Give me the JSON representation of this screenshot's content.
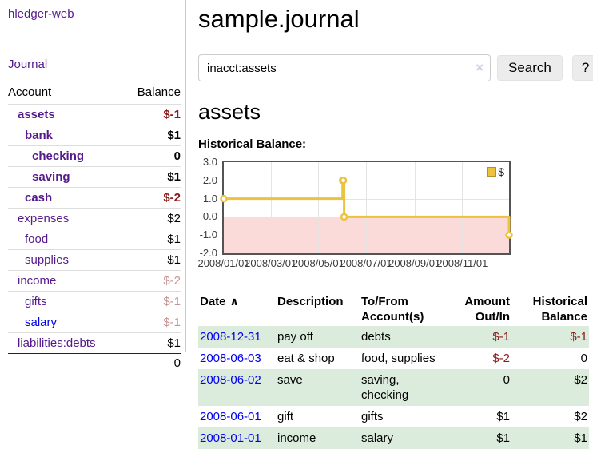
{
  "brand": {
    "label": "hledger-web"
  },
  "nav": {
    "journal": "Journal"
  },
  "sidebar": {
    "header": {
      "account": "Account",
      "balance": "Balance"
    },
    "accounts": [
      {
        "name": "assets",
        "balance": "$-1"
      },
      {
        "name": "bank",
        "balance": "$1"
      },
      {
        "name": "checking",
        "balance": "0"
      },
      {
        "name": "saving",
        "balance": "$1"
      },
      {
        "name": "cash",
        "balance": "$-2"
      },
      {
        "name": "expenses",
        "balance": "$2"
      },
      {
        "name": "food",
        "balance": "$1"
      },
      {
        "name": "supplies",
        "balance": "$1"
      },
      {
        "name": "income",
        "balance": "$-2"
      },
      {
        "name": "gifts",
        "balance": "$-1"
      },
      {
        "name": "salary",
        "balance": "$-1"
      },
      {
        "name": "liabilities:debts",
        "balance": "$1"
      }
    ],
    "total": "0"
  },
  "main": {
    "title": "sample.journal",
    "search": {
      "value": "inacct:assets",
      "clear_icon": "×",
      "search_button": "Search",
      "help_button": "?"
    },
    "account_heading": "assets",
    "chart_title": "Historical Balance:"
  },
  "chart_data": {
    "type": "line",
    "step": true,
    "title": "Historical Balance",
    "series": [
      {
        "name": "$",
        "color": "#EDC240",
        "points": [
          [
            "2008-01-01",
            1
          ],
          [
            "2008-06-01",
            2
          ],
          [
            "2008-06-02",
            2
          ],
          [
            "2008-06-03",
            0
          ],
          [
            "2008-12-31",
            -1
          ]
        ]
      }
    ],
    "x_range": [
      "2008-01-01",
      "2008-12-31"
    ],
    "ylim": [
      -2,
      3
    ],
    "yticks": [
      {
        "label": "3.0",
        "value": 3
      },
      {
        "label": "2.0",
        "value": 2
      },
      {
        "label": "1.0",
        "value": 1
      },
      {
        "label": "0.0",
        "value": 0
      },
      {
        "label": "-1.0",
        "value": -1
      },
      {
        "label": "-2.0",
        "value": -2
      }
    ],
    "xticks": [
      {
        "label": "2008/01/01",
        "date": "2008-01-01"
      },
      {
        "label": "2008/03/01",
        "date": "2008-03-01"
      },
      {
        "label": "2008/05/01",
        "date": "2008-05-01"
      },
      {
        "label": "2008/07/01",
        "date": "2008-07-01"
      },
      {
        "label": "2008/09/01",
        "date": "2008-09-01"
      },
      {
        "label": "2008/11/01",
        "date": "2008-11-01"
      }
    ],
    "legend": {
      "label": "$",
      "swatch_color": "#EDC240",
      "position": "top-right"
    },
    "zero_line_color": "#8b0000",
    "negative_region_color": "#fbdada",
    "grid": true
  },
  "register": {
    "headers": {
      "date": "Date",
      "sort_indicator": "∧",
      "description": "Description",
      "tofrom_line1": "To/From",
      "tofrom_line2": "Account(s)",
      "amount_line1": "Amount",
      "amount_line2": "Out/In",
      "balance_line1": "Historical",
      "balance_line2": "Balance"
    },
    "rows": [
      {
        "date": "2008-12-31",
        "description": "pay off",
        "accounts": "debts",
        "amount": "$-1",
        "balance": "$-1"
      },
      {
        "date": "2008-06-03",
        "description": "eat & shop",
        "accounts": "food, supplies",
        "amount": "$-2",
        "balance": "0"
      },
      {
        "date": "2008-06-02",
        "description": "save",
        "accounts": "saving, checking",
        "amount": "0",
        "balance": "$2"
      },
      {
        "date": "2008-06-01",
        "description": "gift",
        "accounts": "gifts",
        "amount": "$1",
        "balance": "$2"
      },
      {
        "date": "2008-01-01",
        "description": "income",
        "accounts": "salary",
        "amount": "$1",
        "balance": "$1"
      }
    ]
  },
  "colors": {
    "link_purple": "#551A8B",
    "link_blue": "#0000EE",
    "negative": "#8b1a1a",
    "negative_muted": "#c79292",
    "row_stripe_green": "#dcecdc",
    "series_gold": "#EDC240",
    "chart_negative_region": "#fbdada",
    "chart_zero_line": "#8b0000"
  }
}
